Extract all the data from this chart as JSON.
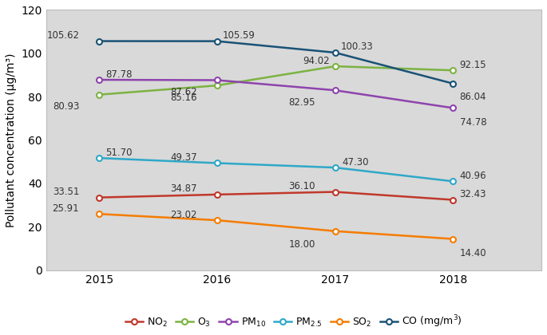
{
  "years": [
    2015,
    2016,
    2017,
    2018
  ],
  "series": [
    {
      "label": "NO$_2$",
      "values": [
        33.51,
        34.87,
        36.1,
        32.43
      ],
      "color": "#c0392b",
      "marker": "o"
    },
    {
      "label": "O$_3$",
      "values": [
        80.93,
        85.16,
        94.02,
        92.15
      ],
      "color": "#7cb342",
      "marker": "o"
    },
    {
      "label": "PM$_{10}$",
      "values": [
        87.78,
        87.62,
        82.95,
        74.78
      ],
      "color": "#8e44ad",
      "marker": "o"
    },
    {
      "label": "PM$_{2.5}$",
      "values": [
        51.7,
        49.37,
        47.3,
        40.96
      ],
      "color": "#2fa8c8",
      "marker": "o"
    },
    {
      "label": "SO$_2$",
      "values": [
        25.91,
        23.02,
        18.0,
        14.4
      ],
      "color": "#f57c00",
      "marker": "o"
    },
    {
      "label": "CO (mg/m$^3$)",
      "values": [
        105.62,
        105.59,
        100.33,
        86.04
      ],
      "color": "#1a5276",
      "marker": "o"
    }
  ],
  "ylabel": "Pollutant concentration (μg/m³)",
  "ylim": [
    0,
    120
  ],
  "yticks": [
    0,
    20,
    40,
    60,
    80,
    100,
    120
  ],
  "background_color": "#d9d9d9",
  "fig_background": "#ffffff",
  "annotation_offsets": [
    [
      [
        -18,
        5
      ],
      [
        -18,
        5
      ],
      [
        -18,
        5
      ],
      [
        6,
        5
      ]
    ],
    [
      [
        -18,
        -11
      ],
      [
        -18,
        -11
      ],
      [
        -5,
        5
      ],
      [
        6,
        5
      ]
    ],
    [
      [
        6,
        5
      ],
      [
        -18,
        -11
      ],
      [
        -18,
        -11
      ],
      [
        6,
        -13
      ]
    ],
    [
      [
        6,
        5
      ],
      [
        -18,
        5
      ],
      [
        6,
        5
      ],
      [
        6,
        5
      ]
    ],
    [
      [
        -18,
        5
      ],
      [
        -18,
        5
      ],
      [
        -18,
        -12
      ],
      [
        6,
        -13
      ]
    ],
    [
      [
        -18,
        5
      ],
      [
        5,
        5
      ],
      [
        5,
        5
      ],
      [
        6,
        -12
      ]
    ]
  ],
  "annotation_fontsize": 8.5,
  "annotation_color": "#333333",
  "linewidth": 1.8,
  "markersize": 5,
  "legend_fontsize": 9,
  "tick_fontsize": 10,
  "ylabel_fontsize": 10
}
